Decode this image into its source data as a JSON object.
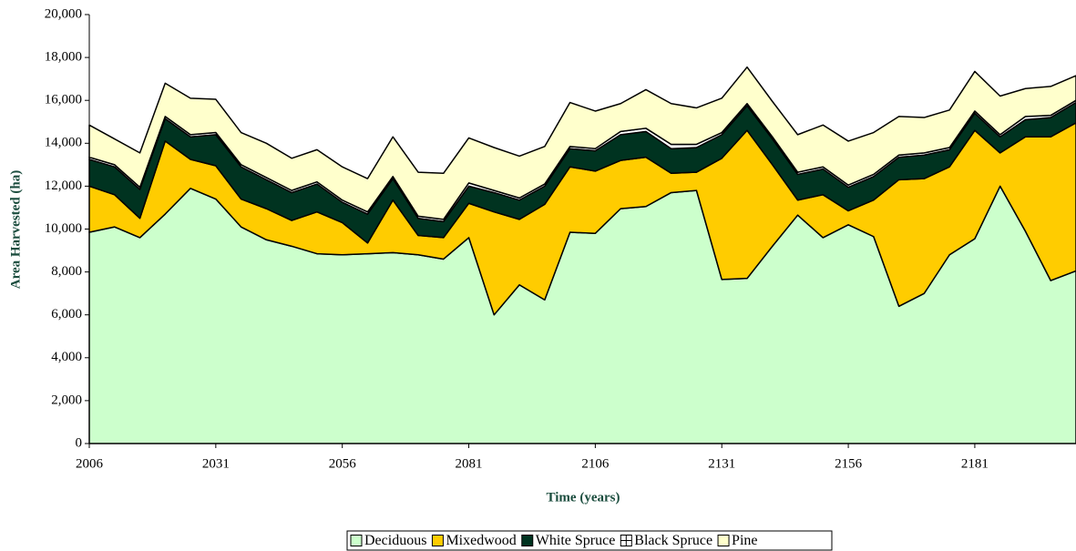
{
  "chart_data": {
    "type": "stacked_area",
    "xlabel": "Time (years)",
    "ylabel": "Area Harvested (ha)",
    "x": [
      2006,
      2011,
      2016,
      2021,
      2026,
      2031,
      2036,
      2041,
      2046,
      2051,
      2056,
      2061,
      2066,
      2071,
      2076,
      2081,
      2086,
      2091,
      2096,
      2101,
      2106,
      2111,
      2116,
      2121,
      2126,
      2131,
      2136,
      2141,
      2146,
      2151,
      2156,
      2161,
      2166,
      2171,
      2176,
      2181,
      2186,
      2191,
      2196,
      2201
    ],
    "xlim": [
      2006,
      2201
    ],
    "xticks": [
      2006,
      2031,
      2056,
      2081,
      2106,
      2131,
      2156,
      2181
    ],
    "ylim": [
      0,
      20000
    ],
    "yticks": [
      0,
      {
        "value": 2000,
        "label": "2,000"
      },
      {
        "value": 4000,
        "label": "4,000"
      },
      {
        "value": 6000,
        "label": "6,000"
      },
      {
        "value": 8000,
        "label": "8,000"
      },
      {
        "value": 10000,
        "label": "10,000"
      },
      {
        "value": 12000,
        "label": "12,000"
      },
      {
        "value": 14000,
        "label": "14,000"
      },
      {
        "value": 16000,
        "label": "16,000"
      },
      {
        "value": 18000,
        "label": "18,000"
      },
      {
        "value": 20000,
        "label": "20,000"
      }
    ],
    "legend": "bottom",
    "series": [
      {
        "name": "Deciduous",
        "color": "#ccffcc",
        "values": [
          9850,
          10100,
          9600,
          10700,
          11900,
          11400,
          10100,
          9500,
          9200,
          8850,
          8800,
          8850,
          8900,
          8800,
          8600,
          9600,
          6000,
          7400,
          6700,
          9850,
          9800,
          10950,
          11050,
          11700,
          11800,
          7650,
          7700,
          9200,
          10650,
          9600,
          10200,
          9650,
          6400,
          7000,
          8800,
          9550,
          12000,
          9900,
          7600,
          8050
        ]
      },
      {
        "name": "Mixedwood",
        "color": "#ffcc00",
        "values": [
          2150,
          1500,
          900,
          3400,
          1350,
          1550,
          1300,
          1450,
          1200,
          1950,
          1500,
          500,
          2450,
          900,
          1000,
          1600,
          4800,
          3050,
          4450,
          3050,
          2900,
          2250,
          2300,
          900,
          850,
          5650,
          6900,
          3800,
          700,
          2000,
          650,
          1700,
          5900,
          5350,
          4100,
          5050,
          1550,
          4400,
          6700,
          6900
        ]
      },
      {
        "name": "White Spruce",
        "color": "#003320",
        "values": [
          1250,
          1300,
          1350,
          1050,
          1050,
          1450,
          1500,
          1350,
          1300,
          1300,
          950,
          1350,
          1000,
          800,
          750,
          800,
          900,
          900,
          850,
          850,
          950,
          1200,
          1200,
          1150,
          1150,
          1100,
          1150,
          1200,
          1200,
          1200,
          1100,
          1100,
          1050,
          1100,
          800,
          800,
          750,
          800,
          900,
          950
        ]
      },
      {
        "name": "Black Spruce",
        "color": "#ffffff",
        "values": [
          100,
          100,
          100,
          100,
          100,
          100,
          100,
          100,
          100,
          100,
          100,
          100,
          100,
          100,
          100,
          150,
          100,
          100,
          100,
          100,
          100,
          150,
          150,
          200,
          150,
          100,
          100,
          100,
          100,
          100,
          100,
          100,
          100,
          100,
          100,
          100,
          100,
          150,
          100,
          100
        ]
      },
      {
        "name": "Pine",
        "color": "#ffffcc",
        "values": [
          1500,
          1200,
          1600,
          1550,
          1700,
          1550,
          1500,
          1600,
          1500,
          1500,
          1550,
          1550,
          1850,
          2050,
          2150,
          2100,
          2000,
          1950,
          1750,
          2050,
          1750,
          1300,
          1800,
          1900,
          1700,
          1600,
          1700,
          1650,
          1750,
          1950,
          2050,
          1950,
          1800,
          1650,
          1750,
          1850,
          1800,
          1300,
          1350,
          1150
        ]
      }
    ]
  }
}
